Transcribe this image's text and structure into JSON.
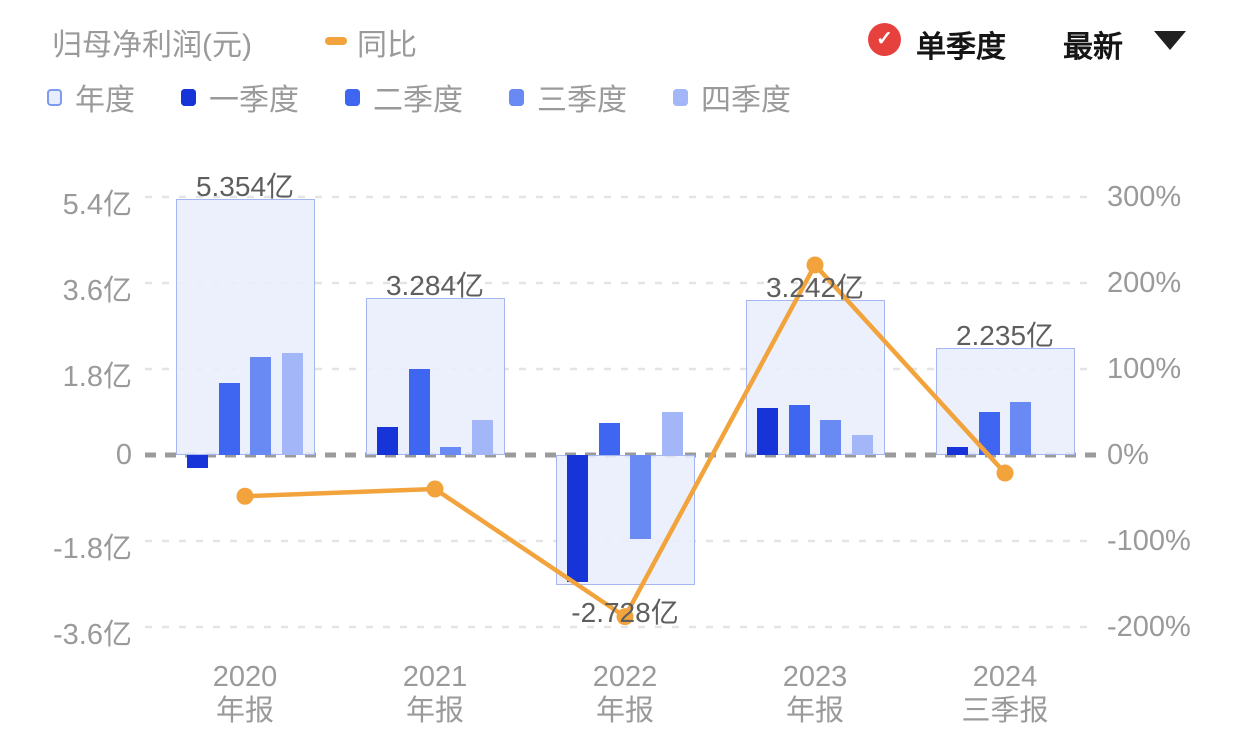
{
  "header": {
    "title": "归母净利润(元)",
    "line_legend_label": "同比",
    "checkbox_label": "单季度",
    "checkbox_checked": true,
    "dropdown_label": "最新",
    "colors": {
      "line": "#F2A33C",
      "checkbox": "#E7413E"
    }
  },
  "legend": {
    "items": [
      {
        "id": "annual",
        "label": "年度",
        "fill": "#e7edfc",
        "border": "#7e9bf0"
      },
      {
        "id": "q1",
        "label": "一季度",
        "fill": "#1634d8",
        "border": "#1634d8"
      },
      {
        "id": "q2",
        "label": "二季度",
        "fill": "#3f66f1",
        "border": "#3f66f1"
      },
      {
        "id": "q3",
        "label": "三季度",
        "fill": "#6a8af3",
        "border": "#6a8af3"
      },
      {
        "id": "q4",
        "label": "四季度",
        "fill": "#a2b6f8",
        "border": "#a2b6f8"
      }
    ]
  },
  "chart_data": {
    "type": "bar",
    "subtype": "grouped-bars-with-line-overlay",
    "title": "归母净利润(元)",
    "left_axis": {
      "unit": "亿",
      "ticks": [
        "5.4亿",
        "3.6亿",
        "1.8亿",
        "0",
        "-1.8亿",
        "-3.6亿"
      ],
      "tick_values": [
        5.4,
        3.6,
        1.8,
        0,
        -1.8,
        -3.6
      ],
      "max": 5.4,
      "min": -3.6
    },
    "right_axis": {
      "unit": "%",
      "ticks": [
        "300%",
        "200%",
        "100%",
        "0%",
        "-100%",
        "-200%"
      ],
      "tick_values": [
        300,
        200,
        100,
        0,
        -100,
        -200
      ],
      "max": 300,
      "min": -200
    },
    "grid": "dashed horizontal lines, darker dashed zero line",
    "legend_position": "top-left",
    "categories": [
      "2020 年报",
      "2021 年报",
      "2022 年报",
      "2023 年报",
      "2024 三季报"
    ],
    "groups": [
      {
        "year": "2020",
        "period": "年报",
        "annual_value": 5.354,
        "annual_label": "5.354亿",
        "quarters": [
          -0.27,
          1.5,
          2.05,
          2.13
        ],
        "yoy_pct": -48
      },
      {
        "year": "2021",
        "period": "年报",
        "annual_value": 3.284,
        "annual_label": "3.284亿",
        "quarters": [
          0.59,
          1.8,
          0.17,
          0.73
        ],
        "yoy_pct": -39.5
      },
      {
        "year": "2022",
        "period": "年报",
        "annual_value": -2.728,
        "annual_label": "-2.728亿",
        "quarters": [
          -2.66,
          0.67,
          -1.76,
          0.9
        ],
        "yoy_pct": -188
      },
      {
        "year": "2023",
        "period": "年报",
        "annual_value": 3.242,
        "annual_label": "3.242亿",
        "quarters": [
          0.98,
          1.05,
          0.73,
          0.42
        ],
        "yoy_pct": 221
      },
      {
        "year": "2024",
        "period": "三季报",
        "annual_value": 2.235,
        "annual_label": "2.235亿",
        "quarters": [
          0.17,
          0.9,
          1.11,
          null
        ],
        "yoy_pct": -21
      }
    ],
    "series_colors": {
      "annual_fill": "#e9eefb",
      "annual_border": "#a6b6f1",
      "q1": "#1634d8",
      "q2": "#3f66f1",
      "q3": "#6a8af3",
      "q4": "#a2b6f8",
      "line": "#F2A33C"
    }
  }
}
